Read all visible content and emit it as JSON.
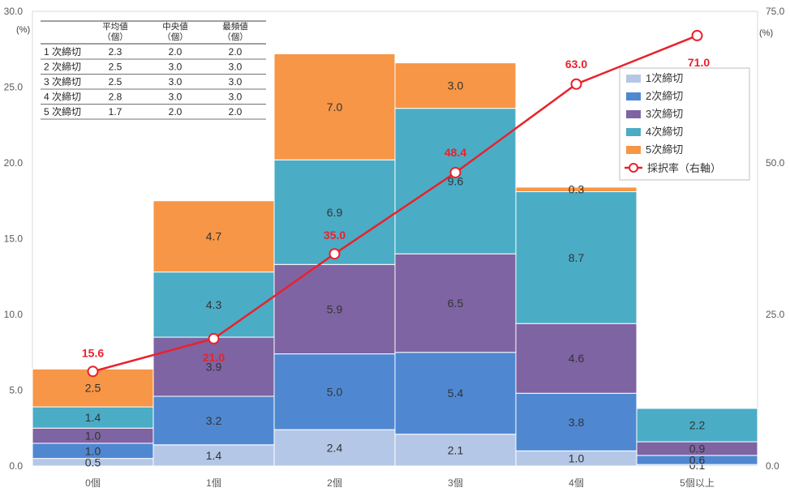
{
  "chart_data": {
    "type": "bar",
    "stacked": true,
    "categories": [
      "0個",
      "1個",
      "2個",
      "3個",
      "4個",
      "5個以上"
    ],
    "series": [
      {
        "name": "1次締切",
        "color": "#b4c7e7",
        "values": [
          0.5,
          1.4,
          2.4,
          2.1,
          1.0,
          0.1
        ]
      },
      {
        "name": "2次締切",
        "color": "#4f88d1",
        "values": [
          1.0,
          3.2,
          5.0,
          5.4,
          3.8,
          0.6
        ]
      },
      {
        "name": "3次締切",
        "color": "#7e64a2",
        "values": [
          1.0,
          3.9,
          5.9,
          6.5,
          4.6,
          0.9
        ]
      },
      {
        "name": "4次締切",
        "color": "#4bacc6",
        "values": [
          1.4,
          4.3,
          6.9,
          9.6,
          8.7,
          2.2
        ]
      },
      {
        "name": "5次締切",
        "color": "#f79646",
        "values": [
          2.5,
          4.7,
          7.0,
          3.0,
          0.3,
          null
        ]
      }
    ],
    "line_series": {
      "name": "採択率（右軸）",
      "color": "#e8222b",
      "values": [
        15.6,
        21.0,
        35.0,
        48.4,
        63.0,
        71.0
      ]
    },
    "ylim": [
      0,
      30
    ],
    "yticks": [
      "0.0",
      "5.0",
      "10.0",
      "15.0",
      "20.0",
      "25.0",
      "30.0"
    ],
    "y2lim": [
      0,
      75
    ],
    "y2ticks": [
      "0.0",
      "25.0",
      "50.0",
      "75.0"
    ],
    "ylabel": "(%)",
    "y2label": "(%)",
    "legend_position": "right",
    "grid": false
  },
  "stats_table": {
    "headers": [
      [
        "平均値",
        "（個）"
      ],
      [
        "中央値",
        "（個）"
      ],
      [
        "最頻値",
        "（個）"
      ]
    ],
    "rows": [
      {
        "label": "1 次締切",
        "mean": "2.3",
        "median": "2.0",
        "mode": "2.0"
      },
      {
        "label": "2 次締切",
        "mean": "2.5",
        "median": "3.0",
        "mode": "3.0"
      },
      {
        "label": "3 次締切",
        "mean": "2.5",
        "median": "3.0",
        "mode": "3.0"
      },
      {
        "label": "4 次締切",
        "mean": "2.8",
        "median": "3.0",
        "mode": "3.0"
      },
      {
        "label": "5 次締切",
        "mean": "1.7",
        "median": "2.0",
        "mode": "2.0"
      }
    ]
  }
}
